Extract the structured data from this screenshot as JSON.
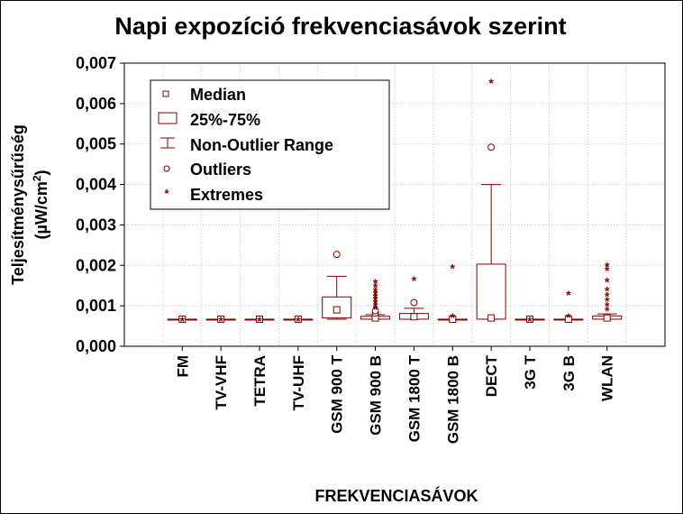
{
  "chart_data": {
    "type": "box",
    "title": "Napi expozíció frekvenciasávok szerint",
    "xlabel": "FREKVENCIASÁVOK",
    "ylabel_line1": "Teljesítménysűrűség",
    "ylabel_line2_prefix": "(µW/cm",
    "ylabel_line2_sup": "2",
    "ylabel_line2_suffix": ")",
    "ylim": [
      0,
      0.007
    ],
    "yticks": [
      0,
      0.001,
      0.002,
      0.003,
      0.004,
      0.005,
      0.006,
      0.007
    ],
    "ytick_labels": [
      "0,000",
      "0,001",
      "0,002",
      "0,003",
      "0,004",
      "0,005",
      "0,006",
      "0,007"
    ],
    "grid": true,
    "legend_position": "top-left",
    "legend": [
      "Median",
      "25%-75%",
      "Non-Outlier Range",
      "Outliers",
      "Extremes"
    ],
    "color": "#800000",
    "categories": [
      "FM",
      "TV-VHF",
      "TETRA",
      "TV-UHF",
      "GSM 900 T",
      "GSM 900 B",
      "GSM 1800 T",
      "GSM 1800 B",
      "DECT",
      "3G T",
      "3G B",
      "WLAN"
    ],
    "boxes": [
      {
        "median": 0.00067,
        "q1": 0.00067,
        "q3": 0.00067,
        "whisker_low": 0.00067,
        "whisker_high": 0.00067,
        "outliers": [],
        "extremes": [
          0.00067
        ]
      },
      {
        "median": 0.00067,
        "q1": 0.00067,
        "q3": 0.00067,
        "whisker_low": 0.00067,
        "whisker_high": 0.00067,
        "outliers": [],
        "extremes": [
          0.00067
        ]
      },
      {
        "median": 0.00067,
        "q1": 0.00067,
        "q3": 0.00067,
        "whisker_low": 0.00067,
        "whisker_high": 0.00067,
        "outliers": [],
        "extremes": [
          0.00067
        ]
      },
      {
        "median": 0.00067,
        "q1": 0.00067,
        "q3": 0.00067,
        "whisker_low": 0.00067,
        "whisker_high": 0.00067,
        "outliers": [],
        "extremes": [
          0.00067
        ]
      },
      {
        "median": 0.0009,
        "q1": 0.0007,
        "q3": 0.00122,
        "whisker_low": 0.00067,
        "whisker_high": 0.00173,
        "outliers": [
          0.00227
        ],
        "extremes": []
      },
      {
        "median": 0.0007,
        "q1": 0.00067,
        "q3": 0.00074,
        "whisker_low": 0.00067,
        "whisker_high": 0.00078,
        "outliers": [
          0.00082,
          0.00088
        ],
        "extremes": [
          0.00096,
          0.00103,
          0.0011,
          0.00118,
          0.00125,
          0.00133,
          0.0014,
          0.0015,
          0.0016
        ]
      },
      {
        "median": 0.00073,
        "q1": 0.00067,
        "q3": 0.00081,
        "whisker_low": 0.00067,
        "whisker_high": 0.00094,
        "outliers": [
          0.00108
        ],
        "extremes": [
          0.00167
        ]
      },
      {
        "median": 0.00067,
        "q1": 0.00067,
        "q3": 0.00067,
        "whisker_low": 0.00067,
        "whisker_high": 0.00067,
        "outliers": [],
        "extremes": [
          0.00076,
          0.00197
        ]
      },
      {
        "median": 0.0007,
        "q1": 0.00067,
        "q3": 0.00203,
        "whisker_low": 0.00067,
        "whisker_high": 0.004,
        "outliers": [
          0.00492
        ],
        "extremes": [
          0.00655
        ]
      },
      {
        "median": 0.00067,
        "q1": 0.00067,
        "q3": 0.00067,
        "whisker_low": 0.00067,
        "whisker_high": 0.00067,
        "outliers": [],
        "extremes": [
          0.00067
        ]
      },
      {
        "median": 0.00067,
        "q1": 0.00067,
        "q3": 0.00067,
        "whisker_low": 0.00067,
        "whisker_high": 0.00067,
        "outliers": [],
        "extremes": [
          0.00076,
          0.00131
        ]
      },
      {
        "median": 0.0007,
        "q1": 0.00067,
        "q3": 0.00075,
        "whisker_low": 0.00067,
        "whisker_high": 0.0008,
        "outliers": [],
        "extremes": [
          0.00092,
          0.00104,
          0.00116,
          0.00128,
          0.00142,
          0.00164,
          0.00192,
          0.00202
        ]
      }
    ]
  }
}
